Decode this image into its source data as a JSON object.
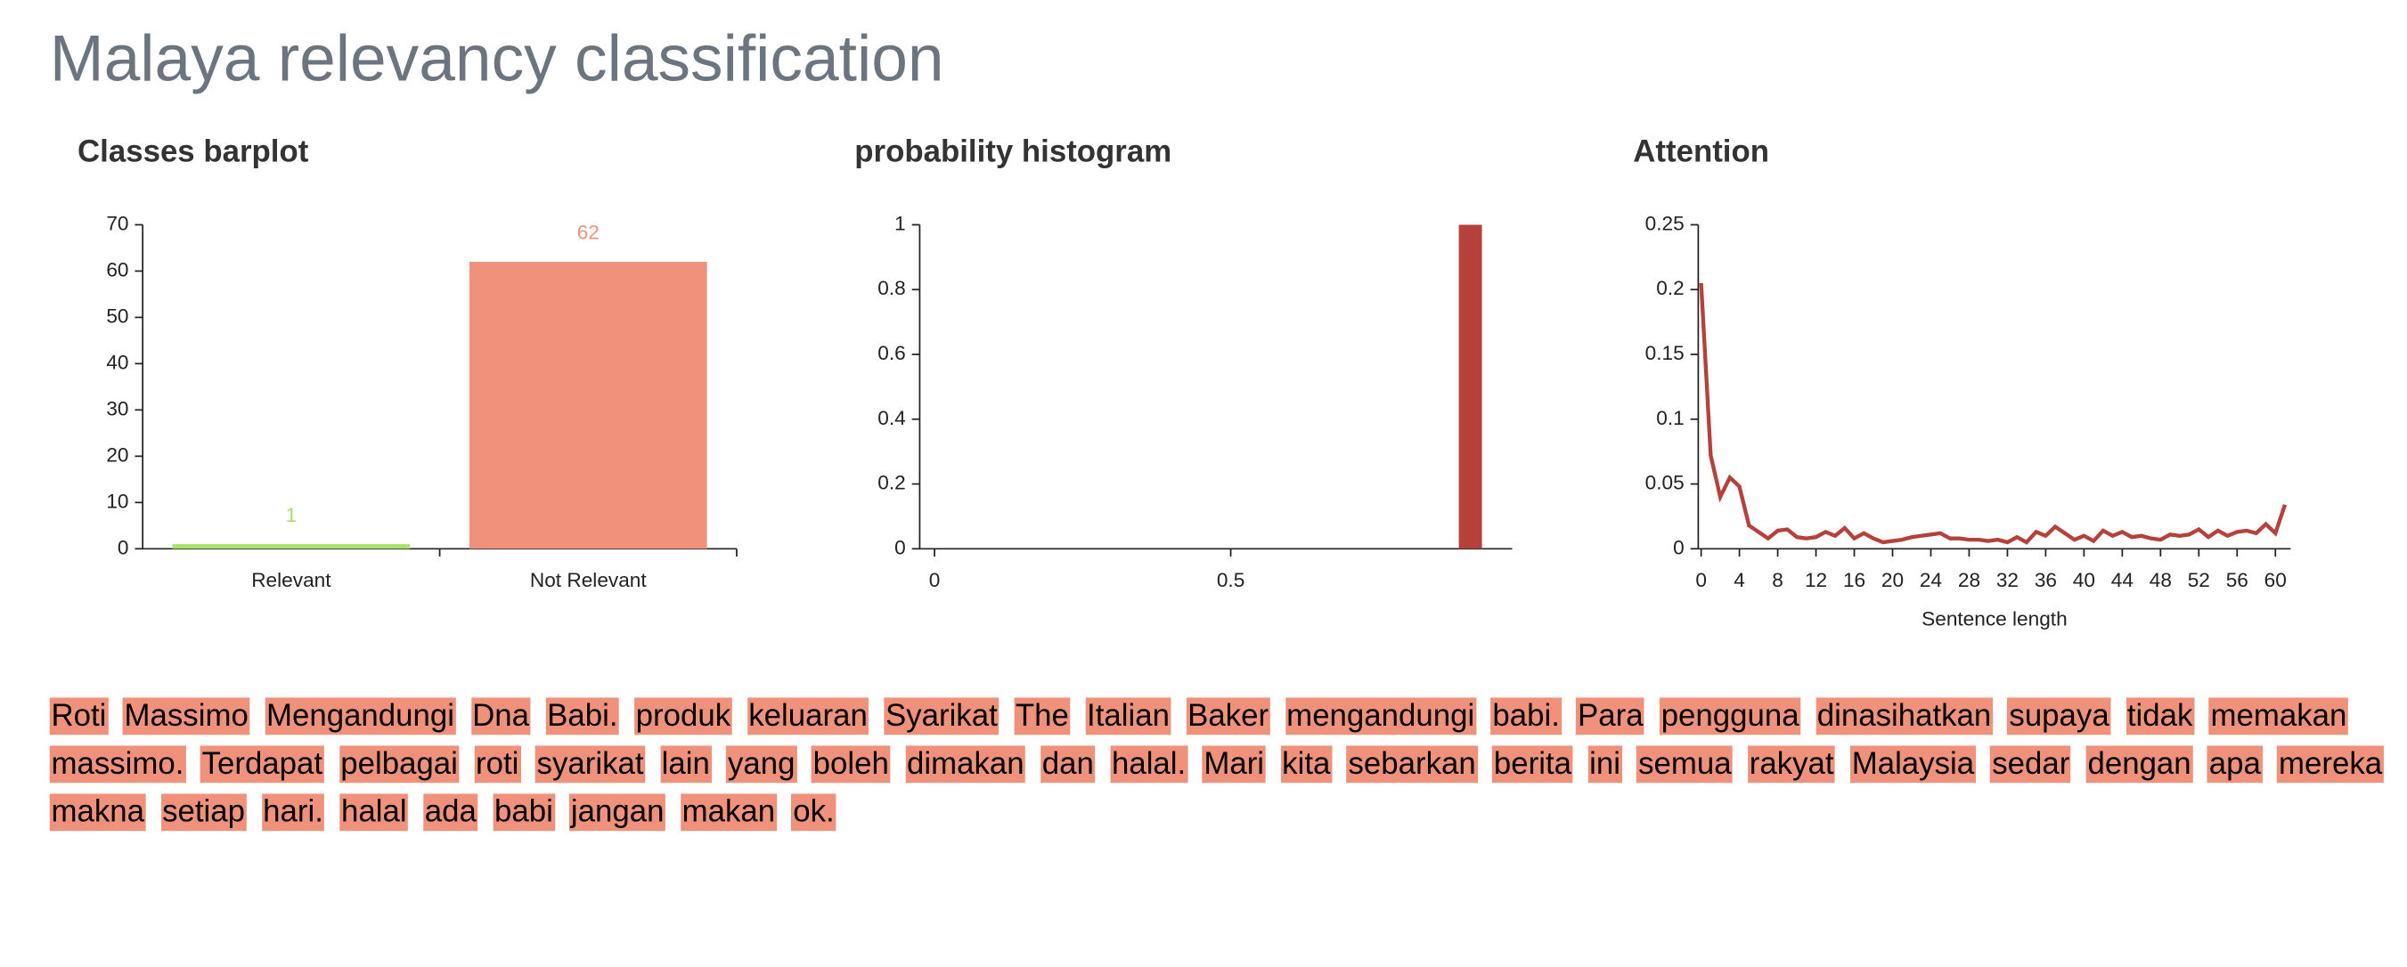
{
  "title": "Malaya relevancy classification",
  "chart_data": [
    {
      "type": "bar",
      "title": "Classes barplot",
      "categories": [
        "Relevant",
        "Not Relevant"
      ],
      "values": [
        1,
        62
      ],
      "colors": [
        "#a6e36b",
        "#f0927b"
      ],
      "ylim": [
        0,
        70
      ],
      "yticks": [
        0,
        10,
        20,
        30,
        40,
        50,
        60,
        70
      ]
    },
    {
      "type": "histogram",
      "title": "probability histogram",
      "bins": [
        0.885,
        0.924
      ],
      "values": [
        1
      ],
      "color": "#b5413a",
      "xlim": [
        -0.025,
        0.975
      ],
      "xticks": [
        0,
        0.5
      ],
      "ylim": [
        0,
        1
      ],
      "yticks": [
        0,
        0.2,
        0.4,
        0.6,
        0.8,
        1
      ]
    },
    {
      "type": "line",
      "title": "Attention",
      "xlabel": "Sentence length",
      "color": "#b5413a",
      "x": [
        0,
        1,
        2,
        3,
        4,
        5,
        6,
        7,
        8,
        9,
        10,
        11,
        12,
        13,
        14,
        15,
        16,
        17,
        18,
        19,
        20,
        21,
        22,
        23,
        24,
        25,
        26,
        27,
        28,
        29,
        30,
        31,
        32,
        33,
        34,
        35,
        36,
        37,
        38,
        39,
        40,
        41,
        42,
        43,
        44,
        45,
        46,
        47,
        48,
        49,
        50,
        51,
        52,
        53,
        54,
        55,
        56,
        57,
        58,
        59,
        60,
        61
      ],
      "values": [
        0.205,
        0.072,
        0.04,
        0.055,
        0.048,
        0.018,
        0.013,
        0.008,
        0.014,
        0.015,
        0.009,
        0.008,
        0.009,
        0.013,
        0.01,
        0.016,
        0.008,
        0.012,
        0.008,
        0.005,
        0.006,
        0.007,
        0.009,
        0.01,
        0.011,
        0.012,
        0.008,
        0.008,
        0.007,
        0.007,
        0.006,
        0.007,
        0.005,
        0.009,
        0.005,
        0.013,
        0.01,
        0.017,
        0.012,
        0.007,
        0.01,
        0.006,
        0.014,
        0.01,
        0.013,
        0.009,
        0.01,
        0.008,
        0.007,
        0.011,
        0.01,
        0.011,
        0.015,
        0.009,
        0.014,
        0.01,
        0.013,
        0.014,
        0.012,
        0.019,
        0.012,
        0.034
      ],
      "xlim": [
        -0.3,
        61.6
      ],
      "xticks": [
        0,
        4,
        8,
        12,
        16,
        20,
        24,
        28,
        32,
        36,
        40,
        44,
        48,
        52,
        56,
        60
      ],
      "ylim": [
        0,
        0.25
      ],
      "yticks": [
        0,
        0.05,
        0.1,
        0.15,
        0.2,
        0.25
      ]
    }
  ],
  "text": {
    "tokens": [
      "Roti",
      "Massimo",
      "Mengandungi",
      "Dna",
      "Babi.",
      "produk",
      "keluaran",
      "Syarikat",
      "The",
      "Italian",
      "Baker",
      "mengandungi",
      "babi.",
      "Para",
      "pengguna",
      "dinasihatkan",
      "supaya",
      "tidak",
      "memakan",
      "massimo.",
      "Terdapat",
      "pelbagai",
      "roti",
      "syarikat",
      "lain",
      "yang",
      "boleh",
      "dimakan",
      "dan",
      "halal.",
      "Mari",
      "kita",
      "sebarkan",
      "berita",
      "ini",
      "semua",
      "rakyat",
      "Malaysia",
      "sedar",
      "dengan",
      "apa",
      "mereka",
      "makna",
      "setiap",
      "hari.",
      "halal",
      "ada",
      "babi",
      "jangan",
      "makan",
      "ok."
    ]
  }
}
